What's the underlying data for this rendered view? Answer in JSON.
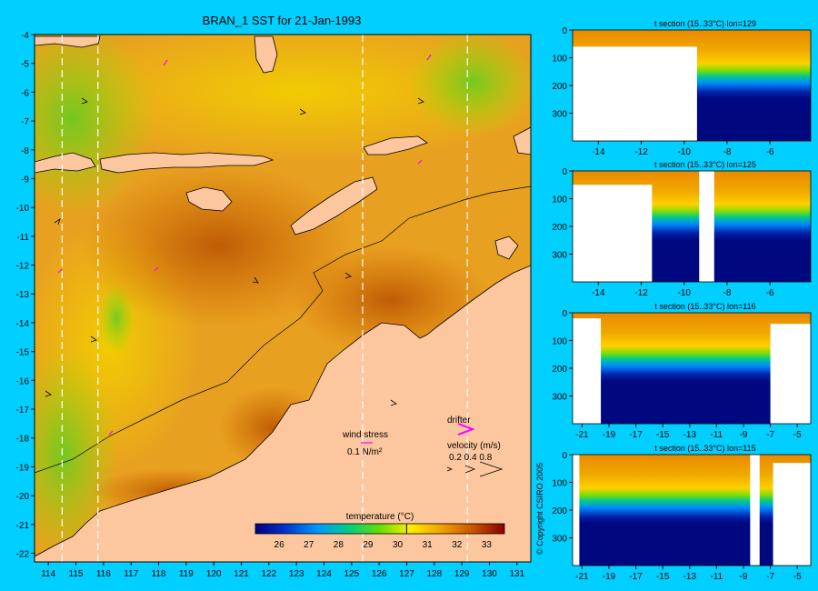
{
  "chart_data": [
    {
      "type": "heatmap",
      "title": "BRAN_1 SST for 21-Jan-1993",
      "x_ticks": [
        "114",
        "115",
        "116",
        "117",
        "118",
        "119",
        "120",
        "121",
        "122",
        "123",
        "124",
        "125",
        "126",
        "127",
        "128",
        "129",
        "130",
        "131"
      ],
      "y_ticks": [
        "-4",
        "-5",
        "-6",
        "-7",
        "-8",
        "-9",
        "-10",
        "-11",
        "-12",
        "-13",
        "-14",
        "-15",
        "-16",
        "-17",
        "-18",
        "-19",
        "-20",
        "-21",
        "-22"
      ],
      "xlim": [
        113.5,
        131.5
      ],
      "ylim": [
        -22.3,
        -4
      ],
      "section_lons": [
        114.5,
        115.8,
        125.4,
        129.2
      ],
      "colorbar": {
        "title": "temperature (°C)",
        "ticks": [
          "26",
          "27",
          "28",
          "29",
          "30",
          "31",
          "32",
          "33"
        ],
        "range": [
          25.2,
          33.6
        ],
        "marker": 30.3
      },
      "legend": {
        "wind_label": "wind stress",
        "wind_value": "0.1 N/m²",
        "drifter_label": "drifter",
        "velocity_label": "velocity (m/s)",
        "velocity_values": "0.2 0.4 0.8"
      }
    },
    {
      "type": "heatmap",
      "title": "t section (15..33°C) lon=129",
      "x_ticks": [
        "-14",
        "-12",
        "-10",
        "-8",
        "-6"
      ],
      "y_ticks": [
        "0",
        "100",
        "200",
        "300"
      ],
      "xlim": [
        -15.2,
        -4.1
      ],
      "ylim": [
        0,
        400
      ],
      "mixed_depth": 80,
      "thermo_depth": 160,
      "land": [
        {
          "lat0": -15.2,
          "lat1": -9.4,
          "depth0": 60
        }
      ]
    },
    {
      "type": "heatmap",
      "title": "t section (15..33°C) lon=125",
      "x_ticks": [
        "-14",
        "-12",
        "-10",
        "-8",
        "-6"
      ],
      "y_ticks": [
        "0",
        "100",
        "200",
        "300"
      ],
      "xlim": [
        -15.2,
        -4.1
      ],
      "ylim": [
        0,
        400
      ],
      "mixed_depth": 80,
      "thermo_depth": 140,
      "land": [
        {
          "lat0": -15.2,
          "lat1": -11.5,
          "depth0": 50
        },
        {
          "lat0": -9.3,
          "lat1": -8.6,
          "depth0": 0
        }
      ]
    },
    {
      "type": "heatmap",
      "title": "t section (15..33°C) lon=116",
      "x_ticks": [
        "-21",
        "-19",
        "-17",
        "-15",
        "-13",
        "-11",
        "-9",
        "-7",
        "-5"
      ],
      "y_ticks": [
        "0",
        "100",
        "200",
        "300"
      ],
      "xlim": [
        -21.7,
        -4.0
      ],
      "ylim": [
        0,
        400
      ],
      "mixed_depth": 70,
      "thermo_depth": 170,
      "land": [
        {
          "lat0": -21.7,
          "lat1": -19.6,
          "depth0": 20
        },
        {
          "lat0": -7.0,
          "lat1": -4.0,
          "depth0": 40
        }
      ]
    },
    {
      "type": "heatmap",
      "title": "t section (15..33°C) lon=115",
      "x_ticks": [
        "-21",
        "-19",
        "-17",
        "-15",
        "-13",
        "-11",
        "-9",
        "-7",
        "-5"
      ],
      "y_ticks": [
        "0",
        "100",
        "200",
        "300"
      ],
      "xlim": [
        -21.7,
        -4.0
      ],
      "ylim": [
        0,
        400
      ],
      "mixed_depth": 70,
      "thermo_depth": 160,
      "land": [
        {
          "lat0": -21.7,
          "lat1": -21.2,
          "depth0": 0
        },
        {
          "lat0": -8.5,
          "lat1": -7.8,
          "depth0": 0
        },
        {
          "lat0": -6.8,
          "lat1": -4.0,
          "depth0": 30
        }
      ]
    }
  ],
  "copyright": "© Copyright CSIRO 2005"
}
